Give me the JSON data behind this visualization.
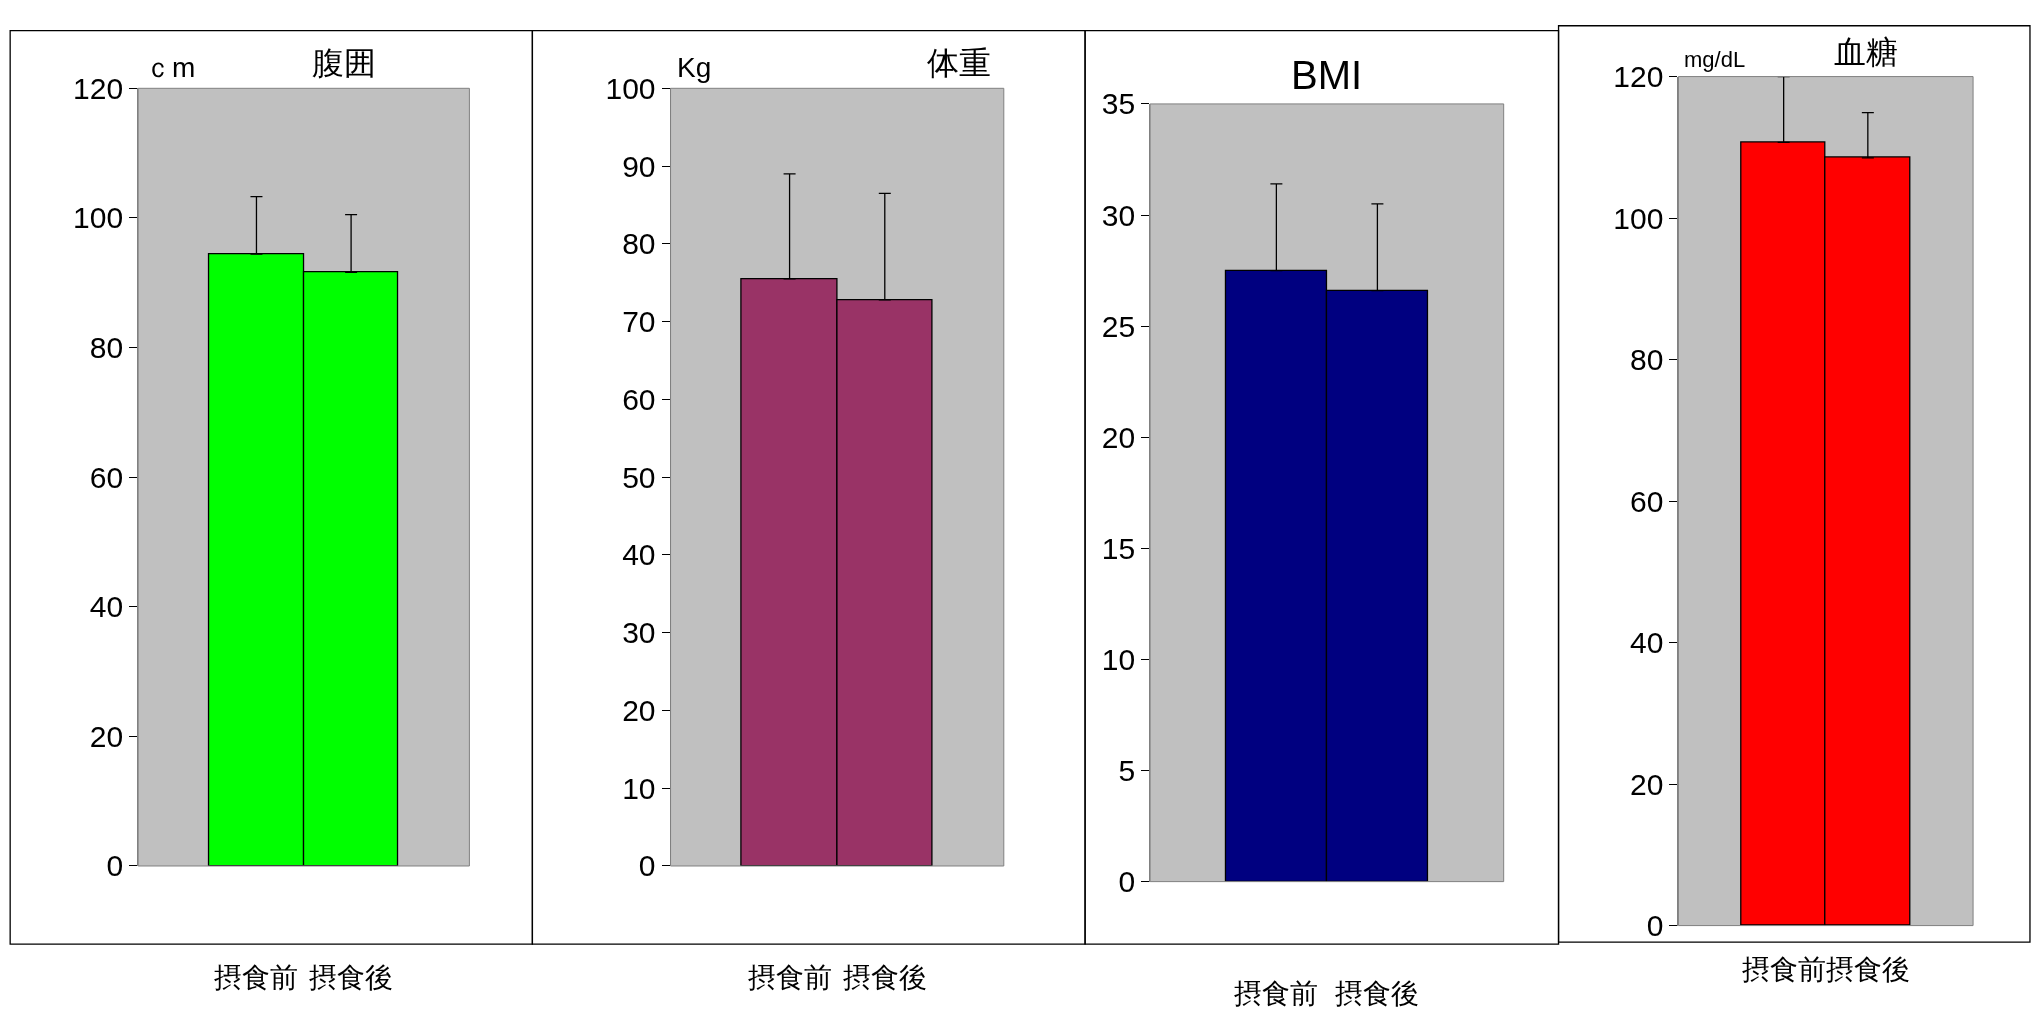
{
  "chart_data": [
    {
      "type": "bar",
      "title": "腹囲",
      "ylabel": "ｃm",
      "categories": [
        "摂食前",
        "摂食後"
      ],
      "values": [
        94.4,
        91.6
      ],
      "colors": [
        "#00ff00",
        "#00ff00"
      ],
      "errors": [
        [
          94.4,
          103.3
        ],
        [
          91.6,
          100.5
        ]
      ],
      "ylim": [
        0,
        120
      ],
      "yticks": [
        0,
        20,
        40,
        60,
        80,
        100,
        120
      ],
      "grid": false
    },
    {
      "type": "bar",
      "title": "体重",
      "ylabel": "Kg",
      "categories": [
        "摂食前",
        "摂食後"
      ],
      "values": [
        75.5,
        72.8
      ],
      "colors": [
        "#993366",
        "#993366"
      ],
      "errors": [
        [
          75.5,
          89.0
        ],
        [
          72.8,
          86.5
        ]
      ],
      "ylim": [
        0,
        100
      ],
      "yticks": [
        0,
        10,
        20,
        30,
        40,
        50,
        60,
        70,
        80,
        90,
        100
      ],
      "grid": false
    },
    {
      "type": "bar",
      "title": "BMI",
      "categories": [
        "摂食前",
        "摂食後"
      ],
      "values": [
        27.5,
        26.6
      ],
      "colors": [
        "#000080",
        "#000080"
      ],
      "errors": [
        [
          27.5,
          31.4
        ],
        [
          26.6,
          30.5
        ]
      ],
      "ylim": [
        0,
        35
      ],
      "yticks": [
        0,
        5,
        10,
        15,
        20,
        25,
        30,
        35
      ],
      "grid": false
    },
    {
      "type": "bar",
      "title": "血糖",
      "ylabel": "mg/dL",
      "categories": [
        "摂食前",
        "摂食後"
      ],
      "values": [
        110.7,
        108.5
      ],
      "colors": [
        "#ff0000",
        "#ff0000"
      ],
      "errors": [
        [
          110.7,
          120
        ],
        [
          108.5,
          114.9
        ]
      ],
      "ylim": [
        0,
        120
      ],
      "yticks": [
        0,
        20,
        40,
        60,
        80,
        100,
        120
      ],
      "grid": false
    }
  ]
}
